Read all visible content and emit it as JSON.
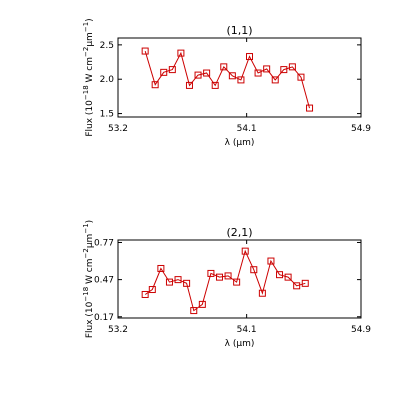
{
  "chart_data": [
    {
      "type": "line",
      "title": "(1,1)",
      "xlabel": "λ (μm)",
      "ylabel": "Flux (10",
      "ylabel_exp1": "−18",
      "ylabel_mid": " W cm",
      "ylabel_exp2": "−2",
      "ylabel_mu": "μm",
      "ylabel_exp3": "−1",
      "ylabel_end": ")",
      "xlim": [
        53.2,
        54.9
      ],
      "ylim": [
        1.45,
        2.6
      ],
      "xticks": [
        53.2,
        54.1,
        54.9
      ],
      "xtick_labels": [
        "53.2",
        "54.1",
        "54.9"
      ],
      "yticks": [
        1.5,
        2.0,
        2.5
      ],
      "ytick_labels": [
        "1.5",
        "2.0",
        "2.5"
      ],
      "color": "#cc0000",
      "marker": "square",
      "x": [
        53.39,
        53.46,
        53.52,
        53.58,
        53.64,
        53.7,
        53.76,
        53.82,
        53.88,
        53.94,
        54.0,
        54.06,
        54.12,
        54.18,
        54.24,
        54.3,
        54.36,
        54.42,
        54.48,
        54.54,
        54.6
      ],
      "y": [
        2.41,
        1.92,
        2.1,
        2.14,
        2.38,
        1.91,
        2.06,
        2.09,
        1.91,
        2.18,
        2.05,
        1.99,
        2.33,
        2.09,
        2.15,
        1.99,
        2.14,
        2.18,
        2.03,
        1.58,
        null
      ]
    },
    {
      "type": "line",
      "title": "(2,1)",
      "xlabel": "λ (μm)",
      "ylabel": "Flux (10",
      "ylabel_exp1": "−18",
      "ylabel_mid": " W cm",
      "ylabel_exp2": "−2",
      "ylabel_mu": "μm",
      "ylabel_exp3": "−1",
      "ylabel_end": ")",
      "xlim": [
        53.2,
        54.9
      ],
      "ylim": [
        0.16,
        0.79
      ],
      "xticks": [
        53.2,
        54.1,
        54.9
      ],
      "xtick_labels": [
        "53.2",
        "54.1",
        "54.9"
      ],
      "yticks": [
        0.17,
        0.47,
        0.77
      ],
      "ytick_labels": [
        "0.17",
        "0.47",
        "0.77"
      ],
      "color": "#cc0000",
      "marker": "square",
      "x": [
        53.39,
        53.44,
        53.5,
        53.56,
        53.62,
        53.68,
        53.73,
        53.79,
        53.85,
        53.91,
        53.97,
        54.03,
        54.09,
        54.15,
        54.21,
        54.27,
        54.33,
        54.39,
        54.45,
        54.51,
        54.57
      ],
      "y": [
        0.35,
        0.39,
        0.56,
        0.45,
        0.47,
        0.44,
        0.22,
        0.27,
        0.52,
        0.49,
        0.5,
        0.45,
        0.7,
        0.55,
        0.36,
        0.62,
        0.51,
        0.49,
        0.42,
        0.44,
        null
      ]
    }
  ]
}
